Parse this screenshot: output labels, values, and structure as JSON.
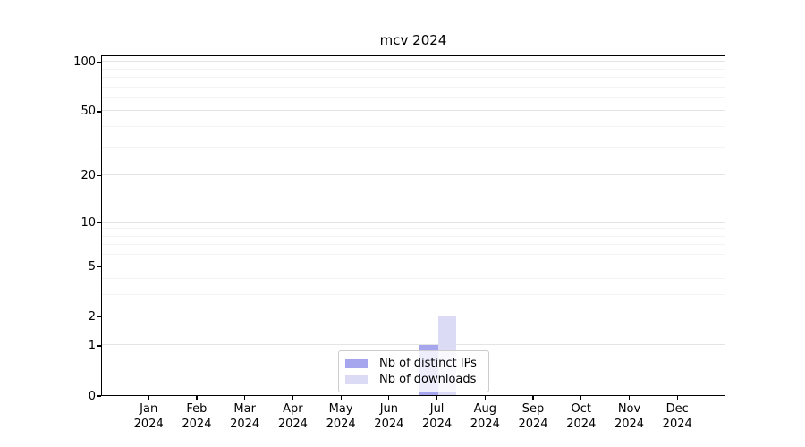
{
  "chart_data": {
    "type": "bar",
    "title": "mcv 2024",
    "categories": [
      "Jan 2024",
      "Feb 2024",
      "Mar 2024",
      "Apr 2024",
      "May 2024",
      "Jun 2024",
      "Jul 2024",
      "Aug 2024",
      "Sep 2024",
      "Oct 2024",
      "Nov 2024",
      "Dec 2024"
    ],
    "series": [
      {
        "name": "Nb of distinct IPs",
        "color": "#a6a6ee",
        "values": [
          0,
          0,
          0,
          0,
          0,
          0,
          1,
          0,
          0,
          0,
          0,
          0
        ]
      },
      {
        "name": "Nb of downloads",
        "color": "#dbdbf6",
        "values": [
          0,
          0,
          0,
          0,
          0,
          0,
          2,
          0,
          0,
          0,
          0,
          0
        ]
      }
    ],
    "yscale": "log1p",
    "ylim": [
      0,
      110
    ],
    "yticks": [
      0,
      1,
      2,
      5,
      10,
      20,
      50,
      100
    ],
    "grid_values": [
      1,
      2,
      3,
      4,
      5,
      6,
      7,
      8,
      9,
      10,
      20,
      30,
      40,
      50,
      60,
      70,
      80,
      90,
      100
    ],
    "grid": true,
    "legend_position": "lower center",
    "axis_color": "#000000",
    "grid_color_major": "#e4e4e4",
    "grid_color_minor": "#f3f3f3"
  }
}
